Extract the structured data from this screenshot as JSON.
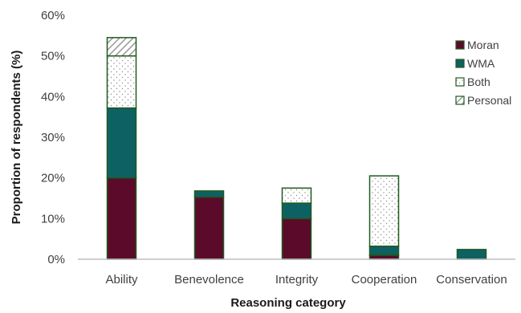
{
  "chart_data": {
    "type": "bar",
    "stacked": true,
    "categories": [
      "Ability",
      "Benevolence",
      "Integrity",
      "Cooperation",
      "Conservation"
    ],
    "series": [
      {
        "name": "Moran",
        "values": [
          20,
          15.3,
          10,
          1,
          0
        ],
        "color": "#5c0a2a",
        "pattern": "solid"
      },
      {
        "name": "WMA",
        "values": [
          17.2,
          1.5,
          3.8,
          2.2,
          2.4
        ],
        "color": "#0e6163",
        "pattern": "solid"
      },
      {
        "name": "Both",
        "values": [
          12.8,
          0,
          3.7,
          17.3,
          0
        ],
        "color": "#ffffff",
        "pattern": "dots"
      },
      {
        "name": "Personal",
        "values": [
          4.5,
          0,
          0,
          0,
          0
        ],
        "color": "#ffffff",
        "pattern": "hatch"
      }
    ],
    "title": "",
    "xlabel": "Reasoning category",
    "ylabel": "Proportion of respondents (%)",
    "ylim": [
      0,
      60
    ],
    "yticks": [
      "0%",
      "10%",
      "20%",
      "30%",
      "40%",
      "50%",
      "60%"
    ],
    "grid": false,
    "legend_position": "right"
  }
}
